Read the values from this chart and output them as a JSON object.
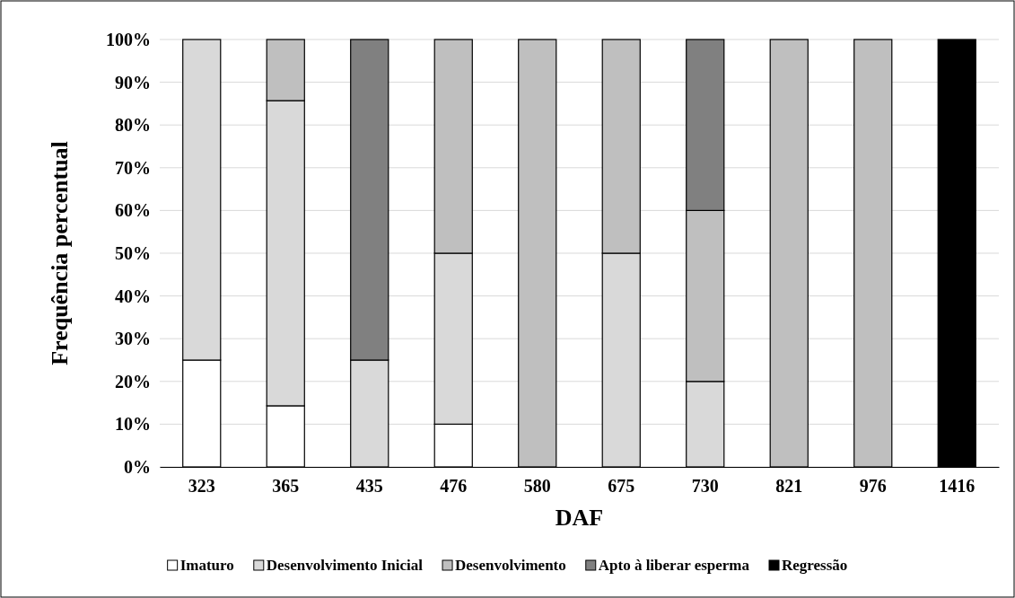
{
  "chart_data": {
    "type": "bar",
    "stacked": true,
    "xlabel": "DAF",
    "ylabel": "Frequência percentual",
    "categories": [
      "323",
      "365",
      "435",
      "476",
      "580",
      "675",
      "730",
      "821",
      "976",
      "1416"
    ],
    "series": [
      {
        "name": "Imaturo",
        "color": "#ffffff",
        "values": [
          25,
          14.3,
          0,
          10,
          0,
          0,
          0,
          0,
          0,
          0
        ]
      },
      {
        "name": "Desenvolvimento Inicial",
        "color": "#d9d9d9",
        "values": [
          75,
          71.4,
          25,
          40,
          0,
          50,
          20,
          0,
          0,
          0
        ]
      },
      {
        "name": "Desenvolvimento",
        "color": "#bfbfbf",
        "values": [
          0,
          14.3,
          0,
          50,
          100,
          50,
          40,
          100,
          100,
          0
        ]
      },
      {
        "name": "Apto à liberar esperma",
        "color": "#808080",
        "values": [
          0,
          0,
          75,
          0,
          0,
          0,
          40,
          0,
          0,
          0
        ]
      },
      {
        "name": "Regressão",
        "color": "#000000",
        "values": [
          0,
          0,
          0,
          0,
          0,
          0,
          0,
          0,
          0,
          100
        ]
      }
    ],
    "ylim": [
      0,
      100
    ],
    "yticks": [
      {
        "value": 0,
        "label": "0%"
      },
      {
        "value": 10,
        "label": "10%"
      },
      {
        "value": 20,
        "label": "20%"
      },
      {
        "value": 30,
        "label": "30%"
      },
      {
        "value": 40,
        "label": "40%"
      },
      {
        "value": 50,
        "label": "50%"
      },
      {
        "value": 60,
        "label": "60%"
      },
      {
        "value": 70,
        "label": "70%"
      },
      {
        "value": 80,
        "label": "80%"
      },
      {
        "value": 90,
        "label": "90%"
      },
      {
        "value": 100,
        "label": "100%"
      }
    ],
    "grid": "y",
    "legend": "bottom"
  }
}
